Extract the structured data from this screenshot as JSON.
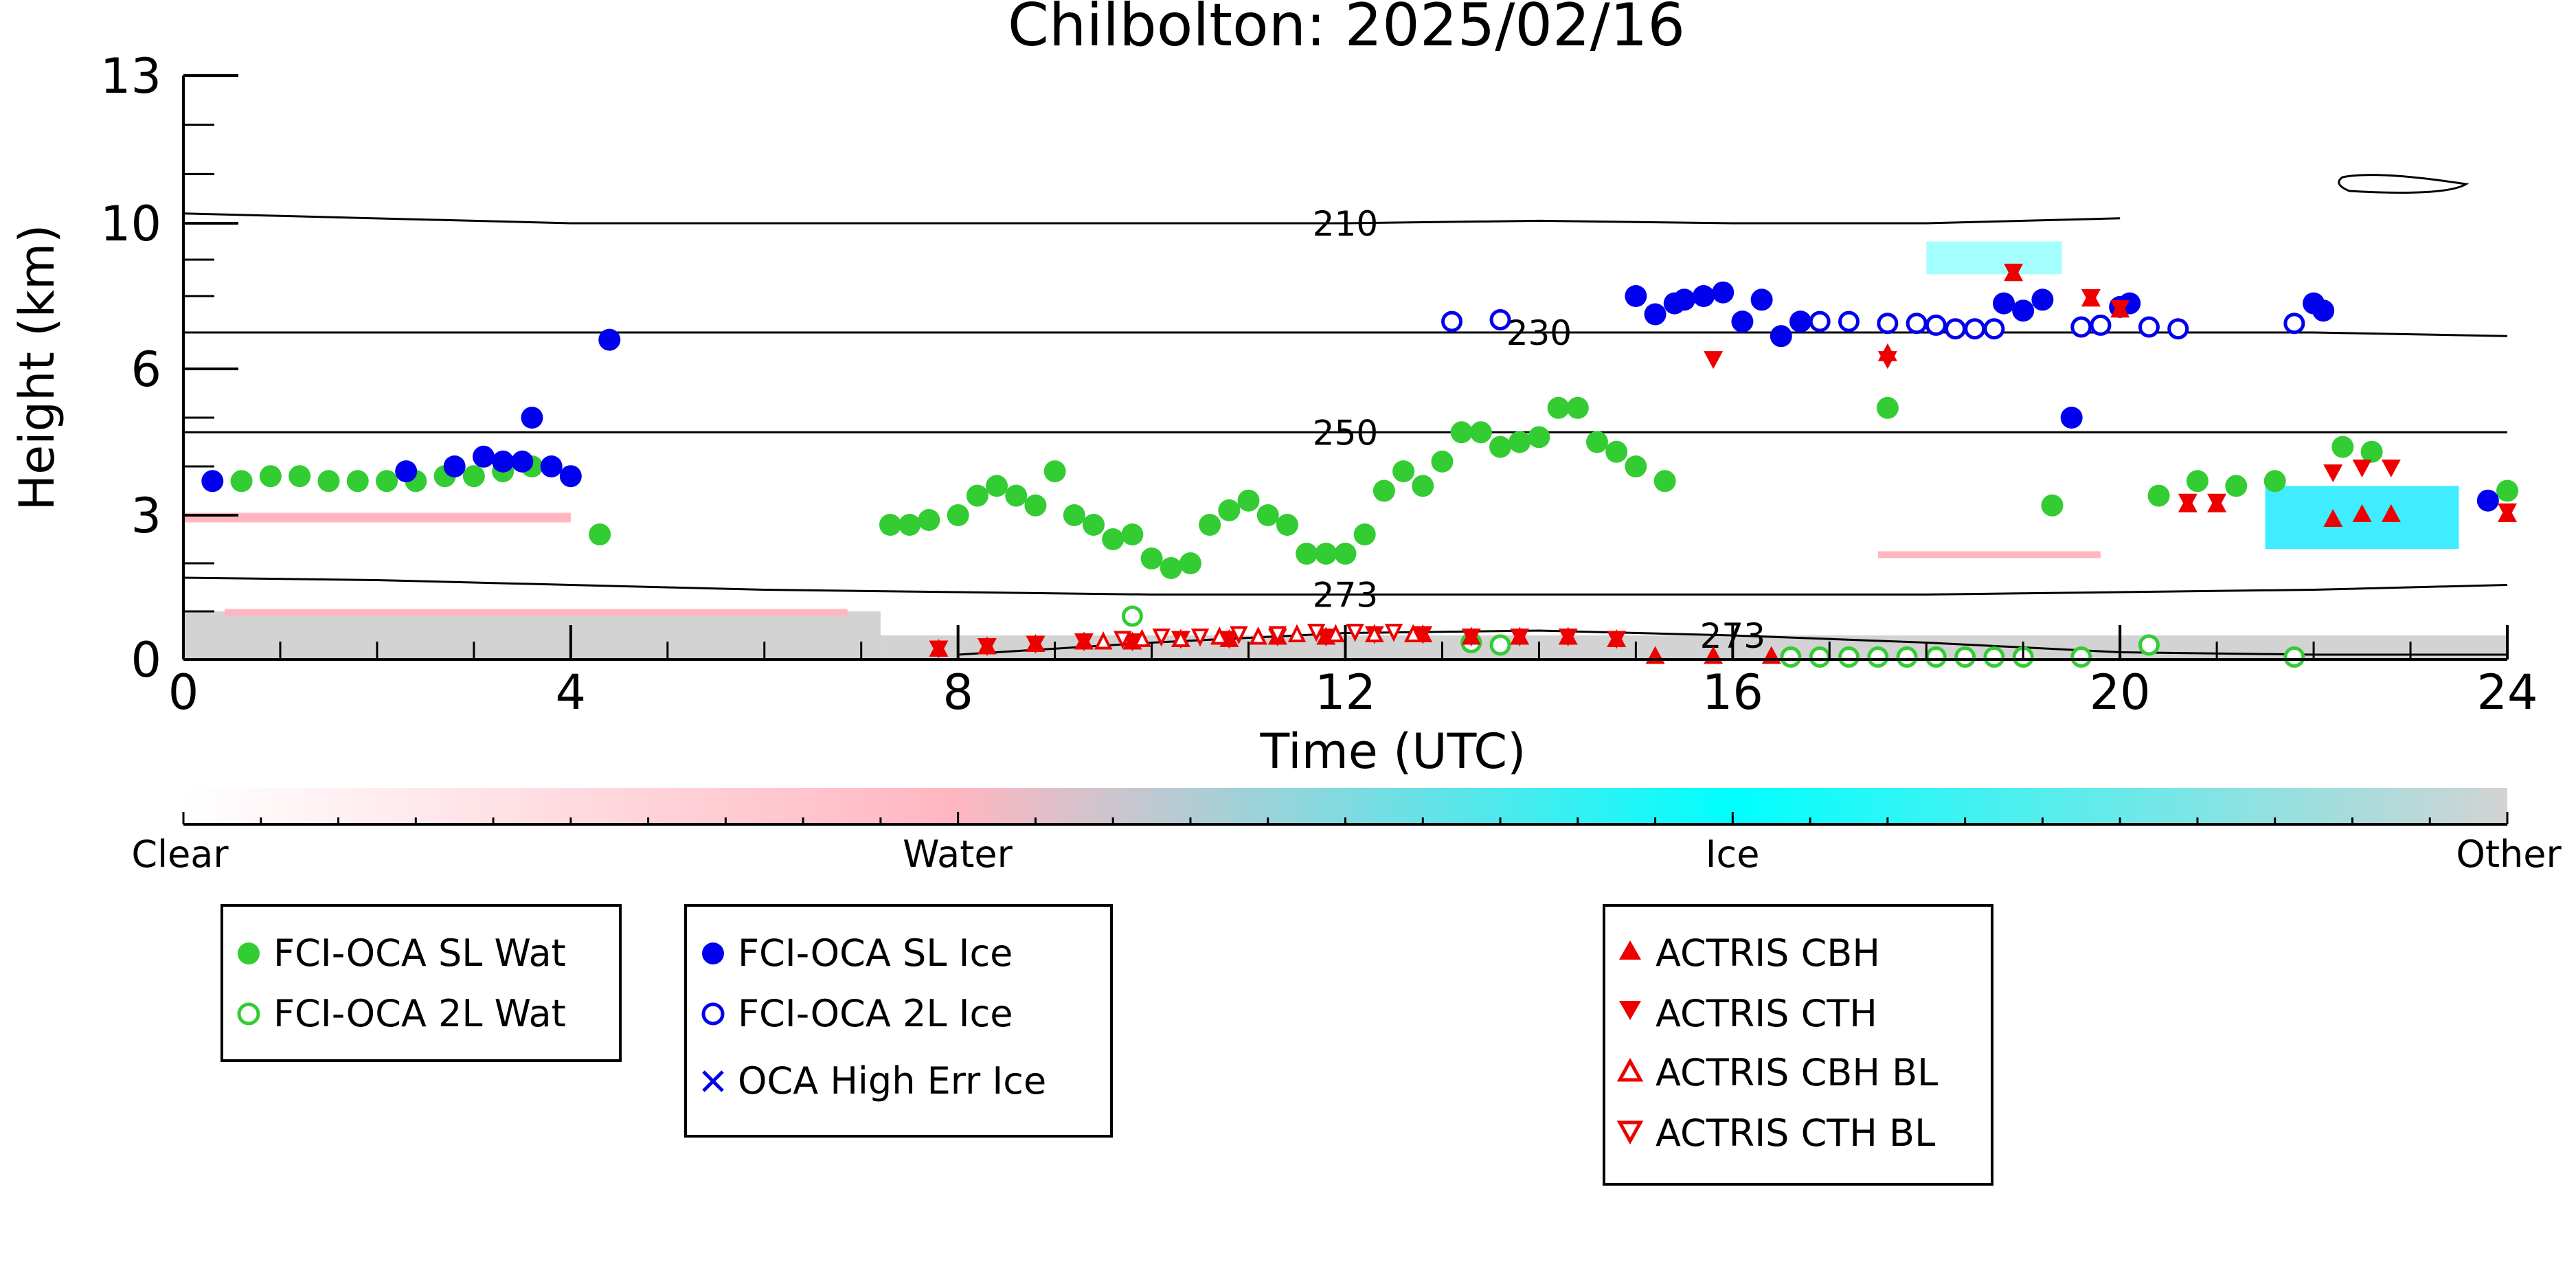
{
  "chart_data": {
    "type": "scatter",
    "title": "Chilbolton: 2025/02/16",
    "xlabel": "Time (UTC)",
    "ylabel": "Height (km)",
    "xlim": [
      0,
      24
    ],
    "ylim": [
      0,
      13
    ],
    "x_ticks": [
      "0",
      "4",
      "8",
      "12",
      "16",
      "20",
      "24"
    ],
    "x_tick_values": [
      0,
      4,
      8,
      12,
      16,
      20,
      24
    ],
    "y_ticks": [
      "0",
      "3",
      "6",
      "10",
      "13"
    ],
    "y_tick_values": [
      0,
      3,
      6,
      10,
      13
    ],
    "y_scale": "non-linear (stretched below 10 km)",
    "grid": false,
    "colorbar": {
      "labels": [
        "Clear",
        "Water",
        "Ice",
        "Other"
      ],
      "colors": [
        "#ffffff",
        "#ffb6c1",
        "#00ffff",
        "#d3d3d3"
      ]
    },
    "contours": [
      {
        "label": "210",
        "x": [
          0,
          1,
          4,
          6,
          8,
          12,
          14,
          16,
          18,
          20
        ],
        "y": [
          10.2,
          10.15,
          10.0,
          10.0,
          10.0,
          10.0,
          10.05,
          10.0,
          10.0,
          10.1
        ]
      },
      {
        "label": "230",
        "x": [
          0,
          2,
          6,
          10,
          14,
          18,
          22,
          24
        ],
        "y": [
          7.0,
          7.0,
          7.0,
          7.0,
          7.0,
          7.0,
          7.0,
          6.9
        ]
      },
      {
        "label": "250",
        "x": [
          0,
          4,
          8,
          12,
          16,
          20,
          24
        ],
        "y": [
          4.7,
          4.7,
          4.7,
          4.7,
          4.7,
          4.7,
          4.7
        ]
      },
      {
        "label": "273",
        "x": [
          0,
          2,
          4,
          6,
          8,
          10,
          12,
          14,
          16,
          18,
          20,
          22,
          24
        ],
        "y": [
          1.7,
          1.65,
          1.55,
          1.45,
          1.4,
          1.35,
          1.35,
          1.35,
          1.35,
          1.35,
          1.4,
          1.45,
          1.55
        ]
      },
      {
        "label": "273",
        "x": [
          8,
          10,
          12,
          14,
          16,
          18,
          20,
          22,
          24
        ],
        "y": [
          0.1,
          0.35,
          0.55,
          0.6,
          0.5,
          0.35,
          0.15,
          0.1,
          0.1
        ]
      }
    ],
    "series": [
      {
        "name": "FCI-OCA SL Wat",
        "color": "#33cc33",
        "marker": "filled-circle",
        "x": [
          0.6,
          0.9,
          1.2,
          1.5,
          1.8,
          2.1,
          2.4,
          2.7,
          3.0,
          3.3,
          3.6,
          4.3,
          7.3,
          7.5,
          7.7,
          8.0,
          8.2,
          8.4,
          8.6,
          8.8,
          9.0,
          9.2,
          9.4,
          9.6,
          9.8,
          10.0,
          10.2,
          10.4,
          10.6,
          10.8,
          11.0,
          11.2,
          11.4,
          11.6,
          11.8,
          12.0,
          12.2,
          12.4,
          12.6,
          12.8,
          13.0,
          13.2,
          13.4,
          13.6,
          13.8,
          14.0,
          14.2,
          14.4,
          14.6,
          14.8,
          15.0,
          15.3,
          17.6,
          19.3,
          20.4,
          20.8,
          21.2,
          21.6,
          22.3,
          22.6,
          24.0
        ],
        "y": [
          3.7,
          3.8,
          3.8,
          3.7,
          3.7,
          3.7,
          3.7,
          3.8,
          3.8,
          3.9,
          4.0,
          2.6,
          2.8,
          2.8,
          2.9,
          3.0,
          3.4,
          3.6,
          3.4,
          3.2,
          3.9,
          3.0,
          2.8,
          2.5,
          2.6,
          2.1,
          1.9,
          2.0,
          2.8,
          3.1,
          3.3,
          3.0,
          2.8,
          2.2,
          2.2,
          2.2,
          2.6,
          3.5,
          3.9,
          3.6,
          4.1,
          4.7,
          4.7,
          4.4,
          4.5,
          4.6,
          5.2,
          5.2,
          4.5,
          4.3,
          4.0,
          3.7,
          5.2,
          3.2,
          3.4,
          3.7,
          3.6,
          3.7,
          4.4,
          4.3,
          3.5
        ]
      },
      {
        "name": "FCI-OCA 2L Wat",
        "color": "#33cc33",
        "marker": "open-circle",
        "x": [
          9.8,
          13.3,
          13.6,
          16.6,
          16.9,
          17.2,
          17.5,
          17.8,
          18.1,
          18.4,
          18.7,
          19.0,
          19.6,
          20.3,
          21.8
        ],
        "y": [
          0.9,
          0.35,
          0.3,
          0.05,
          0.05,
          0.05,
          0.05,
          0.05,
          0.05,
          0.05,
          0.05,
          0.05,
          0.05,
          0.3,
          0.05
        ]
      },
      {
        "name": "FCI-OCA SL Ice",
        "color": "#0000ee",
        "marker": "filled-circle",
        "x": [
          0.3,
          2.3,
          2.8,
          3.1,
          3.3,
          3.5,
          3.6,
          3.8,
          4.0,
          4.4,
          15.0,
          15.2,
          15.4,
          15.5,
          15.7,
          15.9,
          16.1,
          16.3,
          16.5,
          16.7,
          18.8,
          19.0,
          19.2,
          19.5,
          20.0,
          20.1,
          22.0,
          22.1,
          23.8
        ],
        "y": [
          3.7,
          3.9,
          4.0,
          4.2,
          4.1,
          4.1,
          5.0,
          4.0,
          3.8,
          6.8,
          8.0,
          7.5,
          7.8,
          7.9,
          8.0,
          8.1,
          7.3,
          7.9,
          6.9,
          7.3,
          7.8,
          7.6,
          7.9,
          5.0,
          7.7,
          7.8,
          7.8,
          7.6,
          3.3
        ]
      },
      {
        "name": "FCI-OCA 2L Ice",
        "color": "#0000ee",
        "marker": "open-circle",
        "x": [
          13.1,
          13.6,
          16.9,
          17.2,
          17.6,
          17.9,
          18.1,
          18.3,
          18.5,
          18.7,
          19.6,
          19.8,
          20.3,
          20.6,
          21.8
        ],
        "y": [
          7.3,
          7.35,
          7.3,
          7.3,
          7.25,
          7.25,
          7.2,
          7.1,
          7.1,
          7.1,
          7.15,
          7.2,
          7.15,
          7.1,
          7.25
        ]
      },
      {
        "name": "OCA High Err Ice",
        "color": "#0000ee",
        "marker": "x",
        "x": [],
        "y": []
      },
      {
        "name": "ACTRIS CBH",
        "color": "#ee0000",
        "marker": "filled-triangle-up",
        "x": [
          7.8,
          8.3,
          8.8,
          9.3,
          9.8,
          10.3,
          10.8,
          11.3,
          11.8,
          12.3,
          12.8,
          13.3,
          13.8,
          14.3,
          14.8,
          15.2,
          15.8,
          16.4,
          17.6,
          18.9,
          19.7,
          20.0,
          20.7,
          21.0,
          22.2,
          22.5,
          22.8,
          24.0
        ],
        "y": [
          0.2,
          0.25,
          0.3,
          0.35,
          0.35,
          0.4,
          0.4,
          0.45,
          0.45,
          0.5,
          0.5,
          0.45,
          0.45,
          0.45,
          0.4,
          0.05,
          0.05,
          0.05,
          6.4,
          8.6,
          7.9,
          7.6,
          3.2,
          3.2,
          2.9,
          3.0,
          3.0,
          3.0
        ]
      },
      {
        "name": "ACTRIS CTH",
        "color": "#ee0000",
        "marker": "filled-triangle-down",
        "x": [
          7.8,
          8.3,
          8.8,
          9.3,
          9.8,
          10.3,
          10.8,
          11.3,
          11.8,
          12.3,
          12.8,
          13.3,
          13.8,
          14.3,
          14.8,
          15.8,
          17.6,
          18.9,
          19.7,
          20.0,
          20.7,
          21.0,
          22.2,
          22.5,
          22.8,
          24.0
        ],
        "y": [
          0.25,
          0.3,
          0.35,
          0.4,
          0.4,
          0.45,
          0.45,
          0.5,
          0.5,
          0.55,
          0.55,
          0.5,
          0.5,
          0.5,
          0.45,
          6.3,
          6.3,
          8.7,
          8.0,
          7.7,
          3.3,
          3.3,
          3.9,
          4.0,
          4.0,
          3.1
        ]
      },
      {
        "name": "ACTRIS CBH BL",
        "color": "#ee0000",
        "marker": "open-triangle-up",
        "x": [
          9.5,
          9.9,
          10.3,
          10.7,
          11.1,
          11.5,
          11.9,
          12.3,
          12.7
        ],
        "y": [
          0.35,
          0.4,
          0.4,
          0.45,
          0.45,
          0.5,
          0.5,
          0.5,
          0.5
        ]
      },
      {
        "name": "ACTRIS CTH BL",
        "color": "#ee0000",
        "marker": "open-triangle-down",
        "x": [
          9.7,
          10.1,
          10.5,
          10.9,
          11.3,
          11.7,
          12.1,
          12.5
        ],
        "y": [
          0.45,
          0.5,
          0.5,
          0.55,
          0.55,
          0.6,
          0.6,
          0.6
        ]
      }
    ],
    "legend": {
      "placement": "below",
      "groups": [
        [
          "FCI-OCA SL Wat",
          "FCI-OCA 2L Wat"
        ],
        [
          "FCI-OCA SL Ice",
          "FCI-OCA 2L Ice",
          "OCA High Err Ice"
        ],
        [
          "ACTRIS CBH",
          "ACTRIS CTH",
          "ACTRIS CBH BL",
          "ACTRIS CTH BL"
        ]
      ]
    }
  }
}
